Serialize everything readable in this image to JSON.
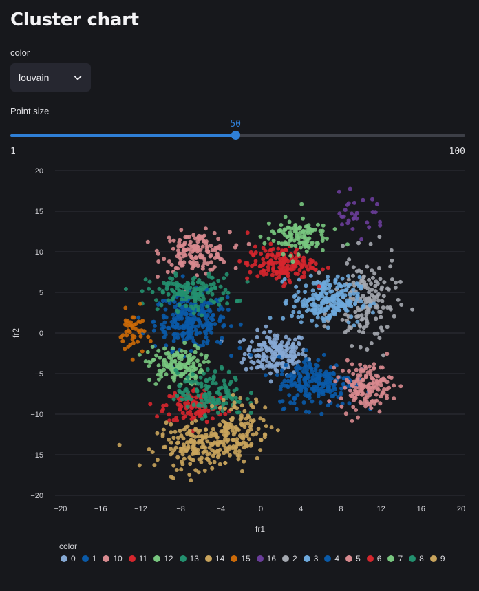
{
  "page": {
    "title": "Cluster chart"
  },
  "color_select": {
    "label": "color",
    "value": "louvain"
  },
  "point_size": {
    "label": "Point size",
    "min": 1,
    "max": 100,
    "value": 50,
    "min_label": "1",
    "max_label": "100",
    "value_label": "50"
  },
  "chart_data": {
    "type": "scatter",
    "xlabel": "fr1",
    "ylabel": "fr2",
    "xlim": [
      -20,
      20
    ],
    "ylim": [
      -20,
      20
    ],
    "x_ticks": [
      -20,
      -16,
      -12,
      -8,
      -4,
      0,
      4,
      8,
      12,
      16,
      20
    ],
    "y_ticks": [
      -20,
      -15,
      -10,
      -5,
      0,
      5,
      10,
      15,
      20
    ],
    "x_tick_labels": [
      "−20",
      "−16",
      "−12",
      "−8",
      "−4",
      "0",
      "4",
      "8",
      "12",
      "16",
      "20"
    ],
    "y_tick_labels": [
      "−20",
      "−15",
      "−10",
      "−5",
      "0",
      "5",
      "10",
      "15",
      "20"
    ],
    "grid": "horizontal",
    "legend_title": "color",
    "legend_position": "bottom",
    "series": [
      {
        "name": "0",
        "color": "#86a9d4",
        "center": [
          1.5,
          -2.5
        ],
        "spread": [
          2.6,
          2.2
        ],
        "count": 180
      },
      {
        "name": "1",
        "color": "#0a5aa8",
        "center": [
          -7.0,
          1.5
        ],
        "spread": [
          3.0,
          2.8
        ],
        "count": 260
      },
      {
        "name": "10",
        "color": "#d88a8f",
        "center": [
          -6.5,
          10.0
        ],
        "spread": [
          2.8,
          2.0
        ],
        "count": 150
      },
      {
        "name": "11",
        "color": "#d6262d",
        "center": [
          -6.5,
          -9.0
        ],
        "spread": [
          2.6,
          1.8
        ],
        "count": 120
      },
      {
        "name": "12",
        "color": "#78c67f",
        "center": [
          -8.5,
          -4.0
        ],
        "spread": [
          2.3,
          2.0
        ],
        "count": 140
      },
      {
        "name": "13",
        "color": "#23906f",
        "center": [
          -7.0,
          5.0
        ],
        "spread": [
          3.6,
          1.8
        ],
        "count": 150
      },
      {
        "name": "14",
        "color": "#c9a45c",
        "center": [
          -6.0,
          -14.0
        ],
        "spread": [
          3.6,
          2.2
        ],
        "count": 190
      },
      {
        "name": "15",
        "color": "#cc6a08",
        "center": [
          -12.8,
          0.0
        ],
        "spread": [
          1.1,
          2.3
        ],
        "count": 45
      },
      {
        "name": "16",
        "color": "#6a3d9a",
        "center": [
          9.5,
          14.5
        ],
        "spread": [
          2.4,
          2.0
        ],
        "count": 30
      },
      {
        "name": "2",
        "color": "#a5a9b0",
        "center": [
          10.5,
          4.0
        ],
        "spread": [
          2.6,
          4.5
        ],
        "count": 160
      },
      {
        "name": "3",
        "color": "#6ea9dc",
        "center": [
          6.5,
          4.0
        ],
        "spread": [
          2.8,
          2.4
        ],
        "count": 230
      },
      {
        "name": "4",
        "color": "#0a5aa8",
        "center": [
          5.5,
          -6.0
        ],
        "spread": [
          3.2,
          2.6
        ],
        "count": 220
      },
      {
        "name": "5",
        "color": "#d88a8f",
        "center": [
          10.5,
          -6.5
        ],
        "spread": [
          2.2,
          2.4
        ],
        "count": 150
      },
      {
        "name": "6",
        "color": "#d6262d",
        "center": [
          2.0,
          8.5
        ],
        "spread": [
          2.8,
          1.8
        ],
        "count": 160
      },
      {
        "name": "7",
        "color": "#78c67f",
        "center": [
          3.5,
          12.0
        ],
        "spread": [
          2.6,
          1.8
        ],
        "count": 110
      },
      {
        "name": "8",
        "color": "#23906f",
        "center": [
          -5.0,
          -7.5
        ],
        "spread": [
          2.8,
          2.3
        ],
        "count": 140
      },
      {
        "name": "9",
        "color": "#c9a45c",
        "center": [
          -2.0,
          -11.5
        ],
        "spread": [
          2.4,
          3.0
        ],
        "count": 110
      }
    ]
  }
}
